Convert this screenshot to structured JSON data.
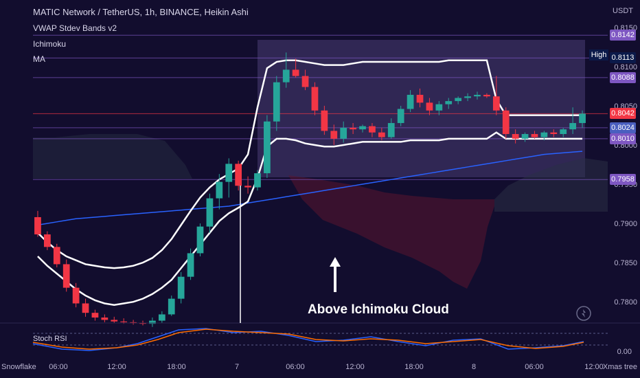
{
  "header": {
    "symbol_line": "MATIC Network / TetherUS, 1h, BINANCE, Heikin Ashi",
    "indicators": [
      "VWAP Stdev Bands v2",
      "Ichimoku",
      "MA"
    ],
    "currency": "USDT"
  },
  "annotation": {
    "text": "Above Ichimoku Cloud",
    "arrow": "up-arrow"
  },
  "price_labels": {
    "high_tag": "High",
    "levels": [
      {
        "value": "0.8142",
        "color": "#7e57c2"
      },
      {
        "value": "0.8113",
        "color": "#0b1a4a"
      },
      {
        "value": "0.8088",
        "color": "#7e57c2"
      },
      {
        "value": "0.8042",
        "color": "#f23645"
      },
      {
        "value": "0.8024",
        "color": "#4a5fbf"
      },
      {
        "value": "0.8010",
        "color": "#7e57c2"
      },
      {
        "value": "0.7958",
        "color": "#7e57c2"
      }
    ]
  },
  "oscillator": {
    "label": "Stoch RSI",
    "value": "0.00"
  },
  "footer": {
    "left_icon": "Snowflake",
    "right_icon": "Xmas tree"
  },
  "colors": {
    "bull": "#26a69a",
    "bear": "#f23645",
    "background": "#120d2e",
    "vwap": "#ffffff",
    "ma": "#2962ff"
  },
  "chart_data": {
    "type": "candlestick",
    "x_ticks": [
      "06:00",
      "12:00",
      "18:00",
      "7",
      "06:00",
      "12:00",
      "18:00",
      "8",
      "06:00",
      "12:00"
    ],
    "y_ticks": [
      "0.7800",
      "0.7850",
      "0.7900",
      "0.7950",
      "0.8000",
      "0.8050",
      "0.8100",
      "0.8150"
    ],
    "ylim": [
      0.7775,
      0.8165
    ],
    "candles": [
      {
        "o": 0.791,
        "h": 0.7918,
        "l": 0.7885,
        "c": 0.7888
      },
      {
        "o": 0.7888,
        "h": 0.7892,
        "l": 0.7868,
        "c": 0.7872
      },
      {
        "o": 0.7872,
        "h": 0.7876,
        "l": 0.7846,
        "c": 0.785
      },
      {
        "o": 0.785,
        "h": 0.7856,
        "l": 0.7815,
        "c": 0.782
      },
      {
        "o": 0.782,
        "h": 0.7826,
        "l": 0.7795,
        "c": 0.78
      },
      {
        "o": 0.78,
        "h": 0.7806,
        "l": 0.7783,
        "c": 0.7788
      },
      {
        "o": 0.7788,
        "h": 0.7792,
        "l": 0.7778,
        "c": 0.7782
      },
      {
        "o": 0.7782,
        "h": 0.7786,
        "l": 0.7776,
        "c": 0.7779
      },
      {
        "o": 0.7779,
        "h": 0.7783,
        "l": 0.7775,
        "c": 0.7777
      },
      {
        "o": 0.7777,
        "h": 0.7781,
        "l": 0.7774,
        "c": 0.7776
      },
      {
        "o": 0.7776,
        "h": 0.7779,
        "l": 0.7773,
        "c": 0.7775
      },
      {
        "o": 0.7775,
        "h": 0.7778,
        "l": 0.7772,
        "c": 0.7774
      },
      {
        "o": 0.7774,
        "h": 0.7782,
        "l": 0.777,
        "c": 0.7778
      },
      {
        "o": 0.7778,
        "h": 0.779,
        "l": 0.7775,
        "c": 0.7786
      },
      {
        "o": 0.7786,
        "h": 0.781,
        "l": 0.7784,
        "c": 0.7806
      },
      {
        "o": 0.7806,
        "h": 0.784,
        "l": 0.78,
        "c": 0.7834
      },
      {
        "o": 0.7834,
        "h": 0.787,
        "l": 0.783,
        "c": 0.7864
      },
      {
        "o": 0.7864,
        "h": 0.7902,
        "l": 0.786,
        "c": 0.7898
      },
      {
        "o": 0.7898,
        "h": 0.794,
        "l": 0.789,
        "c": 0.7934
      },
      {
        "o": 0.7934,
        "h": 0.7965,
        "l": 0.792,
        "c": 0.7955
      },
      {
        "o": 0.7955,
        "h": 0.7985,
        "l": 0.7935,
        "c": 0.7978
      },
      {
        "o": 0.7978,
        "h": 0.7982,
        "l": 0.7944,
        "c": 0.795
      },
      {
        "o": 0.795,
        "h": 0.7962,
        "l": 0.794,
        "c": 0.7948
      },
      {
        "o": 0.7948,
        "h": 0.797,
        "l": 0.7944,
        "c": 0.7966
      },
      {
        "o": 0.7966,
        "h": 0.804,
        "l": 0.796,
        "c": 0.8032
      },
      {
        "o": 0.8032,
        "h": 0.809,
        "l": 0.802,
        "c": 0.8082
      },
      {
        "o": 0.8082,
        "h": 0.812,
        "l": 0.8075,
        "c": 0.8098
      },
      {
        "o": 0.8098,
        "h": 0.8112,
        "l": 0.8088,
        "c": 0.809
      },
      {
        "o": 0.809,
        "h": 0.8098,
        "l": 0.8072,
        "c": 0.8076
      },
      {
        "o": 0.8076,
        "h": 0.8082,
        "l": 0.804,
        "c": 0.8046
      },
      {
        "o": 0.8046,
        "h": 0.8052,
        "l": 0.8015,
        "c": 0.802
      },
      {
        "o": 0.802,
        "h": 0.8028,
        "l": 0.8002,
        "c": 0.801
      },
      {
        "o": 0.801,
        "h": 0.8032,
        "l": 0.8005,
        "c": 0.8024
      },
      {
        "o": 0.8024,
        "h": 0.803,
        "l": 0.8016,
        "c": 0.8022
      },
      {
        "o": 0.8022,
        "h": 0.8028,
        "l": 0.8018,
        "c": 0.8026
      },
      {
        "o": 0.8026,
        "h": 0.803,
        "l": 0.8012,
        "c": 0.8018
      },
      {
        "o": 0.8018,
        "h": 0.8024,
        "l": 0.8008,
        "c": 0.8012
      },
      {
        "o": 0.8012,
        "h": 0.8036,
        "l": 0.801,
        "c": 0.803
      },
      {
        "o": 0.803,
        "h": 0.8052,
        "l": 0.8026,
        "c": 0.8048
      },
      {
        "o": 0.8048,
        "h": 0.8072,
        "l": 0.8044,
        "c": 0.8066
      },
      {
        "o": 0.8066,
        "h": 0.8074,
        "l": 0.805,
        "c": 0.8056
      },
      {
        "o": 0.8056,
        "h": 0.8062,
        "l": 0.804,
        "c": 0.8046
      },
      {
        "o": 0.8046,
        "h": 0.8058,
        "l": 0.804,
        "c": 0.8054
      },
      {
        "o": 0.8054,
        "h": 0.8062,
        "l": 0.8048,
        "c": 0.8058
      },
      {
        "o": 0.8058,
        "h": 0.8064,
        "l": 0.8054,
        "c": 0.8062
      },
      {
        "o": 0.8062,
        "h": 0.8068,
        "l": 0.8058,
        "c": 0.8064
      },
      {
        "o": 0.8064,
        "h": 0.807,
        "l": 0.806,
        "c": 0.8066
      },
      {
        "o": 0.8066,
        "h": 0.8068,
        "l": 0.8062,
        "c": 0.8064
      },
      {
        "o": 0.8064,
        "h": 0.809,
        "l": 0.804,
        "c": 0.8046
      },
      {
        "o": 0.8046,
        "h": 0.805,
        "l": 0.801,
        "c": 0.8016
      },
      {
        "o": 0.8016,
        "h": 0.8022,
        "l": 0.8004,
        "c": 0.801
      },
      {
        "o": 0.801,
        "h": 0.8018,
        "l": 0.8006,
        "c": 0.8016
      },
      {
        "o": 0.8016,
        "h": 0.802,
        "l": 0.801,
        "c": 0.8012
      },
      {
        "o": 0.8012,
        "h": 0.802,
        "l": 0.8008,
        "c": 0.8018
      },
      {
        "o": 0.8018,
        "h": 0.8022,
        "l": 0.8012,
        "c": 0.8016
      },
      {
        "o": 0.8016,
        "h": 0.8024,
        "l": 0.8012,
        "c": 0.8022
      },
      {
        "o": 0.8022,
        "h": 0.805,
        "l": 0.8016,
        "c": 0.803
      },
      {
        "o": 0.803,
        "h": 0.8046,
        "l": 0.8024,
        "c": 0.8042
      }
    ],
    "vwap_upper": [
      0.789,
      0.7878,
      0.7868,
      0.786,
      0.7855,
      0.785,
      0.7848,
      0.7846,
      0.7845,
      0.7846,
      0.7848,
      0.7852,
      0.7858,
      0.7868,
      0.7882,
      0.79,
      0.7918,
      0.7935,
      0.7948,
      0.7958,
      0.7965,
      0.7972,
      0.799,
      0.805,
      0.81,
      0.8108,
      0.811,
      0.811,
      0.8108,
      0.8106,
      0.8104,
      0.8104,
      0.8104,
      0.8106,
      0.8108,
      0.8108,
      0.8108,
      0.8108,
      0.8108,
      0.8108,
      0.8108,
      0.8108,
      0.8108,
      0.811,
      0.811,
      0.811,
      0.811,
      0.811,
      0.806,
      0.804,
      0.804,
      0.804,
      0.804,
      0.804,
      0.804,
      0.804,
      0.804,
      0.804
    ],
    "vwap_lower": [
      0.786,
      0.7848,
      0.7838,
      0.7828,
      0.7818,
      0.781,
      0.7804,
      0.78,
      0.7798,
      0.78,
      0.7802,
      0.7806,
      0.7812,
      0.782,
      0.783,
      0.7845,
      0.786,
      0.7875,
      0.789,
      0.7905,
      0.7915,
      0.7922,
      0.793,
      0.796,
      0.8,
      0.801,
      0.801,
      0.8008,
      0.8004,
      0.8002,
      0.8,
      0.8,
      0.8002,
      0.8004,
      0.8006,
      0.8006,
      0.8006,
      0.8006,
      0.8006,
      0.8008,
      0.8008,
      0.8008,
      0.8008,
      0.801,
      0.801,
      0.801,
      0.801,
      0.801,
      0.8018,
      0.801,
      0.801,
      0.801,
      0.801,
      0.801,
      0.801,
      0.801,
      0.801,
      0.801
    ],
    "ma": [
      0.79,
      0.7902,
      0.7904,
      0.7906,
      0.7908,
      0.7909,
      0.791,
      0.7911,
      0.7912,
      0.7913,
      0.7914,
      0.7915,
      0.7916,
      0.7917,
      0.7918,
      0.7919,
      0.792,
      0.7921,
      0.7922,
      0.7923,
      0.7924,
      0.7926,
      0.7928,
      0.793,
      0.7932,
      0.7934,
      0.7936,
      0.7938,
      0.794,
      0.7942,
      0.7944,
      0.7946,
      0.7948,
      0.795,
      0.7952,
      0.7954,
      0.7956,
      0.7958,
      0.796,
      0.7962,
      0.7964,
      0.7966,
      0.7968,
      0.797,
      0.7972,
      0.7974,
      0.7976,
      0.7978,
      0.798,
      0.7982,
      0.7984,
      0.7986,
      0.7988,
      0.799,
      0.7991,
      0.7992,
      0.7993,
      0.7994
    ],
    "stoch_rsi": {
      "value": 0.0,
      "ylim": [
        0,
        100
      ]
    }
  }
}
